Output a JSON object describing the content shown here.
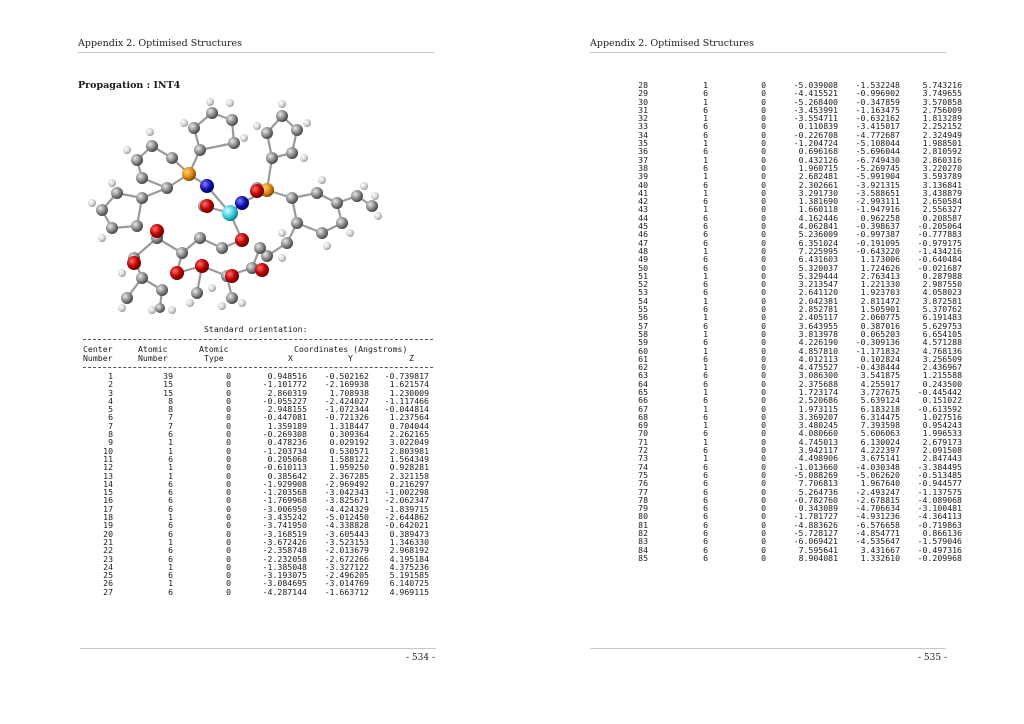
{
  "left_page": {
    "running_head": "Appendix 2. Optimised Structures",
    "section_title": "Propagation : INT4",
    "std_title": "Standard orientation:",
    "header": {
      "line1": [
        "Center",
        "Atomic",
        "Atomic",
        "Coordinates (Angstroms)"
      ],
      "line2": [
        "Number",
        "Number",
        "Type",
        "X",
        "Y",
        "Z"
      ]
    },
    "rows": [
      [
        "1",
        "39",
        "0",
        "0.948516",
        "-0.502162",
        "-0.739817"
      ],
      [
        "2",
        "15",
        "0",
        "-1.101772",
        "-2.169938",
        "1.621574"
      ],
      [
        "3",
        "15",
        "0",
        "2.860319",
        "1.708938",
        "1.230009"
      ],
      [
        "4",
        "8",
        "0",
        "-0.055227",
        "-2.424027",
        "-1.117466"
      ],
      [
        "5",
        "8",
        "0",
        "2.948155",
        "-1.072344",
        "-0.044814"
      ],
      [
        "6",
        "7",
        "0",
        "-0.447081",
        "-0.721326",
        "1.237564"
      ],
      [
        "7",
        "7",
        "0",
        "1.359189",
        "1.318447",
        "0.704044"
      ],
      [
        "8",
        "6",
        "0",
        "-0.269308",
        "0.309364",
        "2.262165"
      ],
      [
        "9",
        "1",
        "0",
        "0.478236",
        "0.029192",
        "3.022049"
      ],
      [
        "10",
        "1",
        "0",
        "-1.203734",
        "0.530571",
        "2.803981"
      ],
      [
        "11",
        "6",
        "0",
        "0.205068",
        "1.588122",
        "1.564349"
      ],
      [
        "12",
        "1",
        "0",
        "-0.610113",
        "1.959250",
        "0.928281"
      ],
      [
        "13",
        "1",
        "0",
        "0.385642",
        "2.367285",
        "2.321158"
      ],
      [
        "14",
        "6",
        "0",
        "-1.929908",
        "-2.969492",
        "0.216297"
      ],
      [
        "15",
        "6",
        "0",
        "-1.203568",
        "-3.042343",
        "-1.002298"
      ],
      [
        "16",
        "6",
        "0",
        "-1.769968",
        "-3.825671",
        "-2.062347"
      ],
      [
        "17",
        "6",
        "0",
        "-3.006950",
        "-4.424329",
        "-1.839715"
      ],
      [
        "18",
        "1",
        "0",
        "-3.435242",
        "-5.012450",
        "-2.644862"
      ],
      [
        "19",
        "6",
        "0",
        "-3.741950",
        "-4.338828",
        "-0.642021"
      ],
      [
        "20",
        "6",
        "0",
        "-3.168519",
        "-3.605443",
        "0.389473"
      ],
      [
        "21",
        "1",
        "0",
        "-3.672426",
        "-3.523153",
        "1.346330"
      ],
      [
        "22",
        "6",
        "0",
        "-2.358748",
        "-2.013679",
        "2.968192"
      ],
      [
        "23",
        "6",
        "0",
        "-2.232058",
        "-2.672266",
        "4.195184"
      ],
      [
        "24",
        "1",
        "0",
        "-1.385048",
        "-3.327122",
        "4.375236"
      ],
      [
        "25",
        "6",
        "0",
        "-3.193075",
        "-2.496205",
        "5.191585"
      ],
      [
        "26",
        "1",
        "0",
        "-3.084695",
        "-3.014769",
        "6.140725"
      ],
      [
        "27",
        "6",
        "0",
        "-4.287144",
        "-1.663712",
        "4.969115"
      ]
    ],
    "page_number": "- 534 -"
  },
  "right_page": {
    "running_head": "Appendix 2. Optimised Structures",
    "rows": [
      [
        "28",
        "1",
        "0",
        "-5.039008",
        "-1.532248",
        "5.743216"
      ],
      [
        "29",
        "6",
        "0",
        "-4.415521",
        "-0.996902",
        "3.749655"
      ],
      [
        "30",
        "1",
        "0",
        "-5.268400",
        "-0.347859",
        "3.570858"
      ],
      [
        "31",
        "6",
        "0",
        "-3.453991",
        "-1.163475",
        "2.756009"
      ],
      [
        "32",
        "1",
        "0",
        "-3.554711",
        "-0.632162",
        "1.813289"
      ],
      [
        "33",
        "6",
        "0",
        "0.110839",
        "-3.415017",
        "2.252152"
      ],
      [
        "34",
        "6",
        "0",
        "-0.226708",
        "-4.772687",
        "2.324949"
      ],
      [
        "35",
        "1",
        "0",
        "-1.204724",
        "-5.108044",
        "1.988501"
      ],
      [
        "36",
        "6",
        "0",
        "0.696168",
        "-5.696044",
        "2.810592"
      ],
      [
        "37",
        "1",
        "0",
        "0.432126",
        "-6.749430",
        "2.860316"
      ],
      [
        "38",
        "6",
        "0",
        "1.960715",
        "-5.269745",
        "3.220270"
      ],
      [
        "39",
        "1",
        "0",
        "2.682481",
        "-5.991904",
        "3.593789"
      ],
      [
        "40",
        "6",
        "0",
        "2.302661",
        "-3.921315",
        "3.136841"
      ],
      [
        "41",
        "1",
        "0",
        "3.291730",
        "-3.588651",
        "3.438879"
      ],
      [
        "42",
        "6",
        "0",
        "1.381690",
        "-2.993111",
        "2.650584"
      ],
      [
        "43",
        "1",
        "0",
        "1.660118",
        "-1.947916",
        "2.556327"
      ],
      [
        "44",
        "6",
        "0",
        "4.162446",
        "0.962258",
        "0.208587"
      ],
      [
        "45",
        "6",
        "0",
        "4.062841",
        "-0.398637",
        "-0.205064"
      ],
      [
        "46",
        "6",
        "0",
        "5.236009",
        "-0.997387",
        "-0.777883"
      ],
      [
        "47",
        "6",
        "0",
        "6.351024",
        "-0.191095",
        "-0.979175"
      ],
      [
        "48",
        "1",
        "0",
        "7.225995",
        "-0.643220",
        "-1.434216"
      ],
      [
        "49",
        "6",
        "0",
        "6.431603",
        "1.173006",
        "-0.640484"
      ],
      [
        "50",
        "6",
        "0",
        "5.320037",
        "1.724626",
        "-0.021687"
      ],
      [
        "51",
        "1",
        "0",
        "5.329444",
        "2.763413",
        "0.287988"
      ],
      [
        "52",
        "6",
        "0",
        "3.213547",
        "1.221330",
        "2.987550"
      ],
      [
        "53",
        "6",
        "0",
        "2.641120",
        "1.923703",
        "4.058023"
      ],
      [
        "54",
        "1",
        "0",
        "2.042381",
        "2.811472",
        "3.872581"
      ],
      [
        "55",
        "6",
        "0",
        "2.852781",
        "1.505901",
        "5.370762"
      ],
      [
        "56",
        "1",
        "0",
        "2.405117",
        "2.060775",
        "6.191483"
      ],
      [
        "57",
        "6",
        "0",
        "3.643955",
        "0.387016",
        "5.629753"
      ],
      [
        "58",
        "1",
        "0",
        "3.813978",
        "0.065203",
        "6.654105"
      ],
      [
        "59",
        "6",
        "0",
        "4.226190",
        "-0.309136",
        "4.571288"
      ],
      [
        "60",
        "1",
        "0",
        "4.857810",
        "-1.171832",
        "4.768136"
      ],
      [
        "61",
        "6",
        "0",
        "4.012113",
        "0.102824",
        "3.256509"
      ],
      [
        "62",
        "1",
        "0",
        "4.475527",
        "-0.438444",
        "2.436967"
      ],
      [
        "63",
        "6",
        "0",
        "3.086300",
        "3.541875",
        "1.215588"
      ],
      [
        "64",
        "6",
        "0",
        "2.375688",
        "4.255917",
        "0.243500"
      ],
      [
        "65",
        "1",
        "0",
        "1.723174",
        "3.727675",
        "-0.445442"
      ],
      [
        "66",
        "6",
        "0",
        "2.520686",
        "5.639124",
        "0.151022"
      ],
      [
        "67",
        "1",
        "0",
        "1.973115",
        "6.183218",
        "-0.613592"
      ],
      [
        "68",
        "6",
        "0",
        "3.369207",
        "6.314475",
        "1.027516"
      ],
      [
        "69",
        "1",
        "0",
        "3.480245",
        "7.393598",
        "0.954243"
      ],
      [
        "70",
        "6",
        "0",
        "4.080660",
        "5.606063",
        "1.996533"
      ],
      [
        "71",
        "1",
        "0",
        "4.745013",
        "6.130024",
        "2.679173"
      ],
      [
        "72",
        "6",
        "0",
        "3.942117",
        "4.222397",
        "2.091508"
      ],
      [
        "73",
        "1",
        "0",
        "4.498906",
        "3.675141",
        "2.847443"
      ],
      [
        "74",
        "6",
        "0",
        "-1.013660",
        "-4.030348",
        "-3.384495"
      ],
      [
        "75",
        "6",
        "0",
        "-5.088269",
        "-5.062620",
        "-0.513485"
      ],
      [
        "76",
        "6",
        "0",
        "7.706813",
        "1.967640",
        "-0.944577"
      ],
      [
        "77",
        "6",
        "0",
        "5.264736",
        "-2.493247",
        "-1.137575"
      ],
      [
        "78",
        "6",
        "0",
        "-0.782760",
        "-2.678815",
        "-4.089068"
      ],
      [
        "79",
        "6",
        "0",
        "0.343089",
        "-4.706634",
        "-3.100481"
      ],
      [
        "80",
        "6",
        "0",
        "-1.781727",
        "-4.931236",
        "-4.364113"
      ],
      [
        "81",
        "6",
        "0",
        "-4.883626",
        "-6.576658",
        "-0.719863"
      ],
      [
        "82",
        "6",
        "0",
        "-5.728127",
        "-4.854771",
        "0.866136"
      ],
      [
        "83",
        "6",
        "0",
        "-6.069421",
        "-4.535647",
        "-1.579046"
      ],
      [
        "84",
        "6",
        "0",
        "7.595641",
        "3.431667",
        "-0.497316"
      ],
      [
        "85",
        "6",
        "0",
        "8.904081",
        "1.332610",
        "-0.209968"
      ]
    ],
    "page_number": "- 535 -"
  }
}
